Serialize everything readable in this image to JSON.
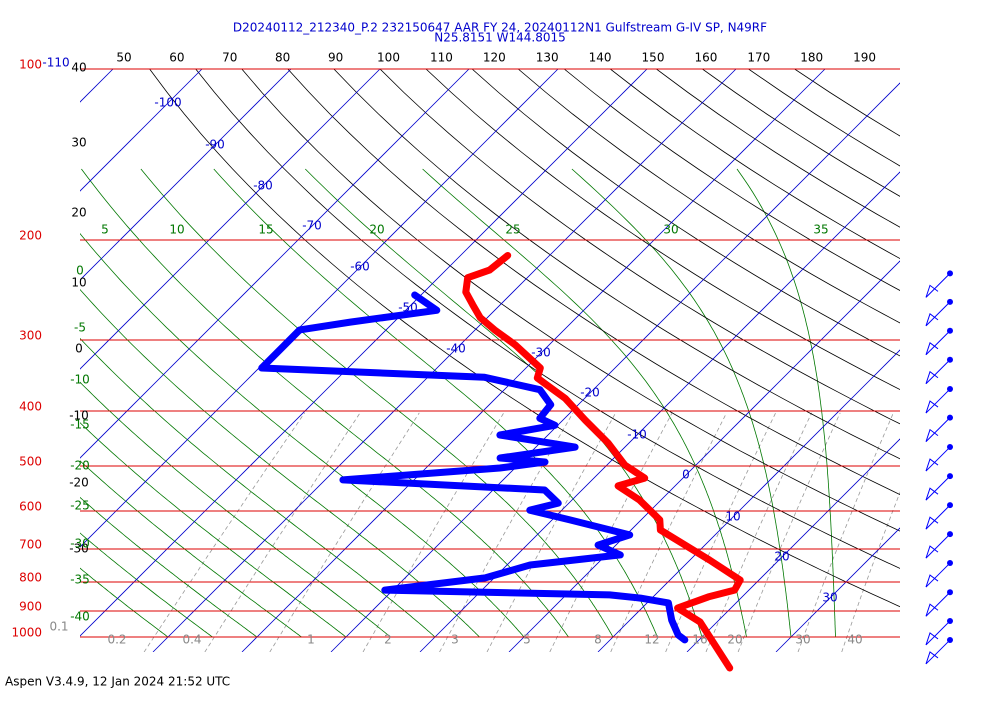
{
  "title": "D20240112_212340_P.2 232150647 AAR FY 24, 20240112N1 Gulfstream G-IV SP, N49RF",
  "subtitle": "N25.8151 W144.8015",
  "footer": "Aspen V3.4.9, 12 Jan 2024  21:52 UTC",
  "chart_data": {
    "type": "skewt",
    "log_scale": true,
    "ylim": [
      100,
      1000
    ],
    "yticks": [
      100,
      200,
      300,
      400,
      500,
      600,
      700,
      800,
      900,
      1000
    ],
    "isobar_color": "#dd0000",
    "isotherms": [
      -110,
      -100,
      -90,
      -80,
      -70,
      -60,
      -50,
      -40,
      -30,
      -20,
      -10,
      0,
      10,
      20,
      30
    ],
    "isotherm_color": "#0000cc",
    "dry_adiabats": [
      50,
      60,
      70,
      80,
      90,
      100,
      110,
      120,
      130,
      140,
      150,
      160,
      170,
      180,
      190
    ],
    "dry_adiabat_labels_left": [
      40,
      30,
      20,
      10,
      0,
      -10,
      -20,
      -30
    ],
    "moist_adiabats": [
      5,
      10,
      15,
      20,
      25,
      30,
      35
    ],
    "moist_adiabats_left": [
      0,
      -5,
      -10,
      -15,
      -20,
      -25,
      -30,
      -35,
      -40
    ],
    "moist_color": "#007700",
    "mixing_ratios": [
      0.1,
      0.2,
      0.4,
      1,
      2,
      3,
      5,
      8,
      12,
      16,
      20,
      30,
      40
    ],
    "series": [
      {
        "color": "#ff0000",
        "pressure": [
          213,
          226,
          233,
          247,
          260,
          274,
          288,
          306,
          336,
          350,
          380,
          415,
          455,
          498,
          525,
          542,
          574,
          622,
          648,
          732,
          794,
          827,
          850,
          889,
          941,
          1134
        ],
        "values": [
          -44.7,
          -45.1,
          -46.7,
          -45.3,
          -43.1,
          -40.8,
          -37.8,
          -33.8,
          -28.4,
          -27.6,
          -22.2,
          -17.5,
          -12.4,
          -8.0,
          -4.3,
          -6.4,
          -2.4,
          2.1,
          3.3,
          12.2,
          17.9,
          18.4,
          16.2,
          14.0,
          18.1,
          26.6
        ]
      },
      {
        "color": "#0000ff",
        "pressure": [
          250,
          266,
          279,
          288,
          306,
          336,
          349,
          367,
          390,
          412,
          424,
          441,
          463,
          484,
          492,
          504,
          529,
          551,
          581,
          598,
          622,
          661,
          689,
          717,
          747,
          787,
          827,
          843,
          854,
          871,
          934,
          992,
          1012
        ],
        "values": [
          -50.7,
          -46.5,
          -54.9,
          -59.7,
          -59.7,
          -59.7,
          -33.6,
          -26.0,
          -23.1,
          -22.8,
          -20.3,
          -25.4,
          -15.6,
          -22.8,
          -17.3,
          -21.7,
          -38.0,
          -14.2,
          -11.2,
          -13.6,
          -8.0,
          0.4,
          -2.0,
          1.6,
          -7.4,
          -11.0,
          -20.9,
          4.9,
          8.7,
          12.4,
          14.7,
          17.1,
          18.4
        ]
      }
    ],
    "wind_pressure": [
      229,
      257,
      289,
      325,
      366,
      411,
      463,
      521,
      586,
      659,
      741,
      834,
      937,
      1012
    ],
    "wind_color": "#0000ff"
  }
}
